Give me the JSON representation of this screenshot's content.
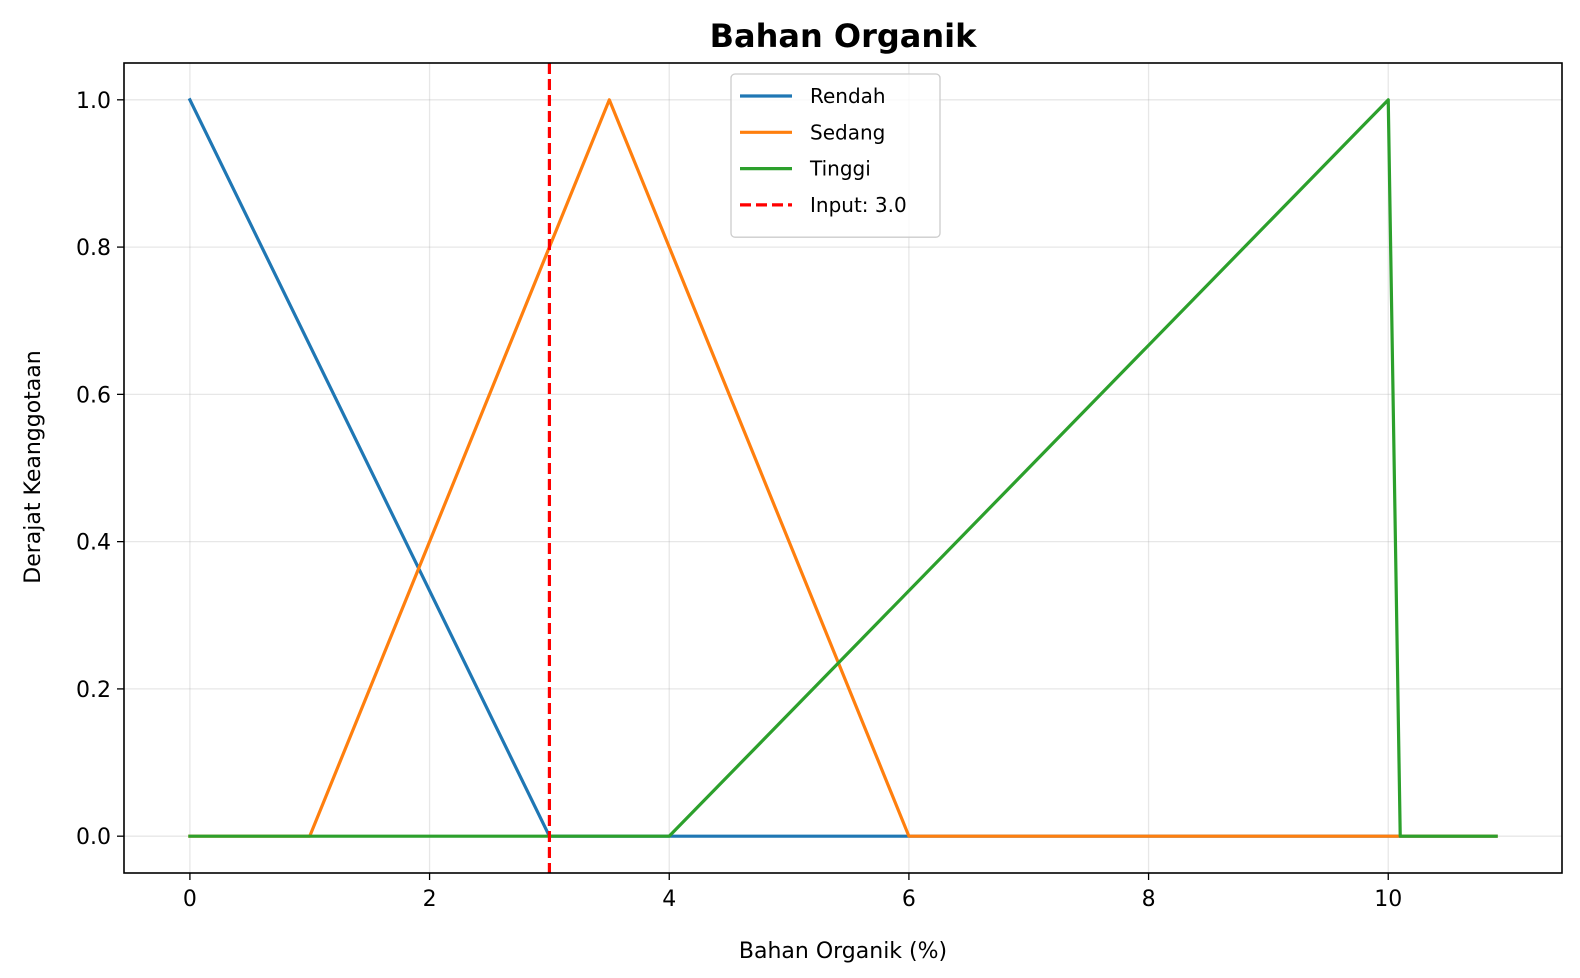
{
  "chart_data": {
    "type": "line",
    "title": "Bahan Organik",
    "xlabel": "Bahan Organik (%)",
    "ylabel": "Derajat Keanggotaan",
    "xlim": [
      -0.55,
      11.45
    ],
    "ylim": [
      -0.05,
      1.05
    ],
    "xticks": [
      0,
      2,
      4,
      6,
      8,
      10
    ],
    "yticks": [
      0.0,
      0.2,
      0.4,
      0.6,
      0.8,
      1.0
    ],
    "xtick_labels": [
      "0",
      "2",
      "4",
      "6",
      "8",
      "10"
    ],
    "ytick_labels": [
      "0.0",
      "0.2",
      "0.4",
      "0.6",
      "0.8",
      "1.0"
    ],
    "grid": true,
    "legend_position": "top-center",
    "series": [
      {
        "name": "Rendah",
        "color": "#1f77b4",
        "style": "solid",
        "x": [
          0,
          3,
          10.9
        ],
        "y": [
          1.0,
          0.0,
          0.0
        ]
      },
      {
        "name": "Sedang",
        "color": "#ff7f0e",
        "style": "solid",
        "x": [
          0,
          1,
          3.5,
          6,
          10.9
        ],
        "y": [
          0.0,
          0.0,
          1.0,
          0.0,
          0.0
        ]
      },
      {
        "name": "Tinggi",
        "color": "#2ca02c",
        "style": "solid",
        "x": [
          0,
          4,
          10,
          10.1,
          10.9
        ],
        "y": [
          0.0,
          0.0,
          1.0,
          0.0,
          0.0
        ]
      }
    ],
    "vlines": [
      {
        "name": "Input: 3.0",
        "x": 3.0,
        "color": "#ff0000",
        "style": "dashed"
      }
    ]
  }
}
